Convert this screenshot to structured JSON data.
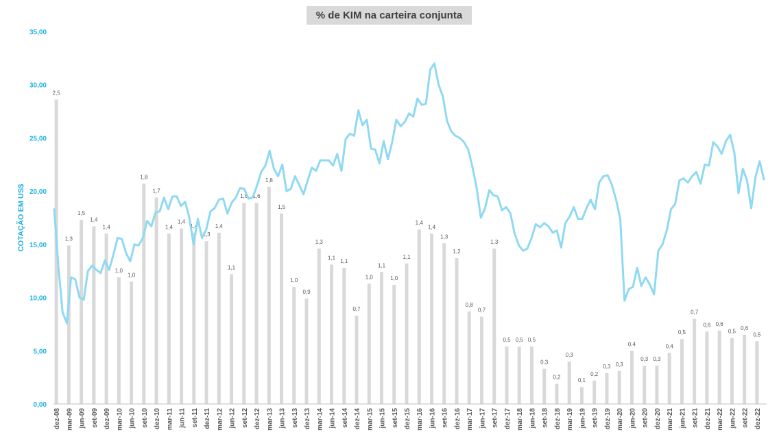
{
  "chart_data": {
    "type": "bar+line",
    "title": "% de KIM na carteira conjunta",
    "ylabel": "COTAÇÃO EM US$",
    "ylim": [
      0,
      35
    ],
    "y_ticks": [
      "0,00",
      "5,00",
      "10,00",
      "15,00",
      "20,00",
      "25,00",
      "30,00",
      "35,00"
    ],
    "x_labels": [
      "dez-08",
      "mar-09",
      "jun-09",
      "set-09",
      "dez-09",
      "mar-10",
      "jun-10",
      "set-10",
      "dez-10",
      "mar-11",
      "jun-11",
      "set-11",
      "dez-11",
      "mar-12",
      "jun-12",
      "set-12",
      "dez-12",
      "mar-13",
      "jun-13",
      "set-13",
      "dez-13",
      "mar-14",
      "jun-14",
      "set-14",
      "dez-14",
      "mar-15",
      "jun-15",
      "set-15",
      "dez-15",
      "mar-16",
      "jun-16",
      "set-16",
      "dez-16",
      "mar-17",
      "jun-17",
      "set-17",
      "dez-17",
      "mar-18",
      "jun-18",
      "set-18",
      "dez-18",
      "mar-19",
      "jun-19",
      "set-19",
      "dez-19",
      "mar-20",
      "jun-20",
      "set-20",
      "dez-20",
      "mar-21",
      "jun-21",
      "set-21",
      "dez-21",
      "mar-22",
      "jun-22",
      "set-22",
      "dez-22"
    ],
    "bars": {
      "colors": "#d9d9d9",
      "heights": [
        28.6,
        14.9,
        17.3,
        16.7,
        16.0,
        11.9,
        11.5,
        20.7,
        19.4,
        16.0,
        16.5,
        16.1,
        15.3,
        16.1,
        12.2,
        18.9,
        18.9,
        20.4,
        17.9,
        11.0,
        9.9,
        14.6,
        13.1,
        12.8,
        8.3,
        11.3,
        12.4,
        11.2,
        13.2,
        16.4,
        16.0,
        15.1,
        13.7,
        8.7,
        8.2,
        14.6,
        5.4,
        5.4,
        5.4,
        3.3,
        1.9,
        4.0,
        1.6,
        2.2,
        2.9,
        3.1,
        5.0,
        3.6,
        3.6,
        4.8,
        6.1,
        8.0,
        6.8,
        6.9,
        6.2,
        6.5,
        5.9
      ],
      "labels": [
        "2,5",
        "1,3",
        "1,5",
        "1,4",
        "1,4",
        "1,0",
        "1,0",
        "1,8",
        "1,7",
        "1,4",
        "1,4",
        "1,4",
        "1,3",
        "1,4",
        "1,1",
        "1,6",
        "1,6",
        "1,8",
        "1,5",
        "1,0",
        "0,9",
        "1,3",
        "1,1",
        "1,1",
        "0,7",
        "1,0",
        "1,1",
        "1,0",
        "1,1",
        "1,4",
        "1,4",
        "1,3",
        "1,2",
        "0,8",
        "0,7",
        "1,3",
        "0,5",
        "0,5",
        "0,5",
        "0,3",
        "0,2",
        "0,3",
        "0,1",
        "0,2",
        "0,3",
        "0,3",
        "0,4",
        "0,3",
        "0,3",
        "0,4",
        "0,5",
        "0,7",
        "0,6",
        "0,6",
        "0,5",
        "0,6",
        "0,5"
      ]
    },
    "line": {
      "name": "",
      "color": "#8fd9f2",
      "values": [
        18.3,
        12.9,
        8.6,
        7.6,
        11.9,
        11.7,
        10.0,
        9.8,
        12.5,
        13.0,
        12.6,
        12.3,
        13.5,
        12.6,
        14.0,
        15.6,
        15.5,
        14.2,
        13.4,
        15.0,
        14.9,
        15.6,
        17.2,
        16.7,
        18.0,
        18.1,
        19.4,
        18.3,
        19.5,
        19.5,
        18.6,
        19.0,
        17.5,
        15.0,
        17.4,
        15.6,
        16.4,
        18.1,
        18.4,
        19.2,
        19.3,
        17.9,
        18.9,
        19.4,
        20.3,
        20.2,
        19.3,
        19.4,
        20.5,
        21.8,
        22.4,
        23.8,
        22.1,
        21.4,
        22.5,
        20.0,
        20.2,
        21.4,
        20.6,
        19.7,
        21.0,
        22.2,
        21.9,
        22.9,
        22.9,
        22.9,
        22.4,
        23.5,
        21.9,
        24.9,
        25.4,
        25.2,
        27.6,
        26.2,
        26.7,
        24.0,
        23.9,
        22.6,
        24.7,
        23.0,
        24.6,
        26.7,
        26.1,
        26.5,
        27.3,
        27.0,
        28.7,
        28.1,
        28.2,
        31.4,
        32.0,
        30.0,
        28.9,
        26.6,
        25.6,
        25.2,
        25.0,
        24.6,
        23.9,
        22.3,
        20.3,
        17.5,
        18.4,
        20.1,
        19.6,
        19.5,
        18.2,
        18.5,
        17.9,
        16.0,
        14.9,
        14.4,
        14.6,
        15.6,
        16.9,
        16.6,
        17.0,
        16.7,
        16.1,
        16.3,
        14.7,
        17.0,
        17.6,
        18.5,
        17.4,
        17.4,
        18.4,
        19.2,
        18.3,
        20.8,
        21.4,
        21.5,
        20.6,
        19.2,
        17.4,
        9.7,
        10.8,
        11.0,
        12.8,
        11.1,
        11.9,
        11.2,
        10.3,
        14.4,
        15.0,
        16.3,
        18.3,
        18.8,
        21.0,
        21.2,
        20.8,
        21.4,
        21.8,
        20.7,
        22.5,
        22.4,
        24.6,
        24.2,
        23.5,
        24.7,
        25.3,
        23.6,
        19.8,
        22.1,
        21.0,
        18.4,
        21.3,
        22.8,
        21.1
      ]
    }
  }
}
